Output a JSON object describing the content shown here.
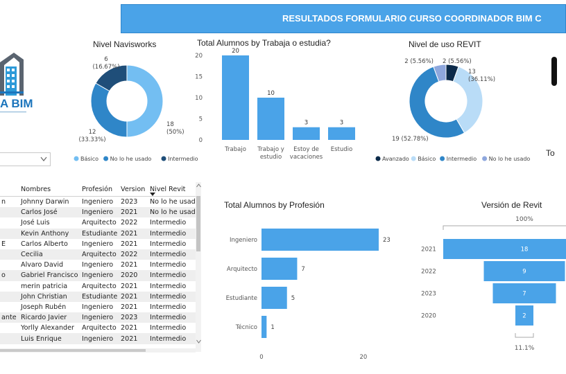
{
  "header": {
    "title": "RESULTADOS FORMULARIO CURSO COORDINADOR BIM C"
  },
  "logo": {
    "text": "A BIM",
    "icon": "building-logo-icon"
  },
  "slicer": {
    "value": "",
    "icon": "chevron-down-icon"
  },
  "table": {
    "columns": [
      "",
      "Nombres",
      "Profesión",
      "Version",
      "Nivel Revit"
    ],
    "sort_icon": "sort-descending-icon",
    "rows": [
      [
        "n",
        "Johnny Darwin",
        "Ingeniero",
        "2023",
        "No lo he usado"
      ],
      [
        "",
        "Carlos José",
        "Ingeniero",
        "2021",
        "No lo he usado"
      ],
      [
        "",
        "José Luis",
        "Arquitecto",
        "2022",
        "Intermedio"
      ],
      [
        "",
        "Kevin Anthony",
        "Estudiante",
        "2021",
        "Intermedio"
      ],
      [
        "E",
        "Carlos Alberto",
        "Ingeniero",
        "2021",
        "Intermedio"
      ],
      [
        "",
        "Cecilia",
        "Arquitecto",
        "2022",
        "Intermedio"
      ],
      [
        "",
        "Alvaro David",
        "Ingeniero",
        "2021",
        "Intermedio"
      ],
      [
        "o",
        "Gabriel Francisco",
        "Ingeniero",
        "2020",
        "Intermedio"
      ],
      [
        "",
        "merin patricia",
        "Arquitecto",
        "2021",
        "Intermedio"
      ],
      [
        "",
        "John Christian",
        "Estudiante",
        "2021",
        "Intermedio"
      ],
      [
        "",
        "Joseph Rubén",
        "Ingeniero",
        "2021",
        "Intermedio"
      ],
      [
        "ante",
        "Ricardo Javier",
        "Ingeniero",
        "2023",
        "Intermedio"
      ],
      [
        "",
        "Yorlly Alexander",
        "Arquitecto",
        "2021",
        "Intermedio"
      ],
      [
        "",
        "Luis Enrique",
        "Ingeniero",
        "2021",
        "Intermedio"
      ]
    ]
  },
  "right_edge": {
    "label": "To"
  },
  "colors": {
    "banner": "#4aa3e8",
    "bar": "#4aa3e8",
    "light": "#73bef2",
    "mid": "#2f86c8",
    "dark": "#1f4e79",
    "navy": "#0b2a4a",
    "pale": "#b9dcf7",
    "lavender": "#8ea7dd"
  },
  "chart_data": [
    {
      "type": "pie",
      "title": "Nivel Navisworks",
      "categories": [
        "Básico",
        "No lo he usado",
        "Intermedio"
      ],
      "values": [
        18,
        12,
        6
      ],
      "data_labels": [
        "18\n(50%)",
        "12\n(33.33%)",
        "6\n(16.67%)"
      ],
      "legend": "bottom"
    },
    {
      "type": "bar",
      "title": "Total Alumnos by Trabaja o estudia?",
      "categories": [
        "Trabajo",
        "Trabajo y\nestudio",
        "Estoy de\nvacaciones",
        "Estudio"
      ],
      "values": [
        20,
        10,
        3,
        3
      ],
      "yticks": [
        "0",
        "5",
        "10",
        "15",
        "20"
      ],
      "ylim": [
        0,
        20
      ]
    },
    {
      "type": "pie",
      "title": "Nivel de uso REVIT",
      "categories": [
        "Avanzado",
        "Básico",
        "Intermedio",
        "No lo he usado"
      ],
      "values": [
        2,
        13,
        19,
        2
      ],
      "data_labels": [
        "2 (5.56%)",
        "13\n(36.11%)",
        "19 (52.78%)",
        "2 (5.56%)"
      ],
      "legend": "bottom"
    },
    {
      "type": "bar",
      "title": "Total Alumnos by Profesión",
      "orientation": "horizontal",
      "categories": [
        "Ingeniero",
        "Arquitecto",
        "Estudiante",
        "Técnico"
      ],
      "values": [
        23,
        7,
        5,
        1
      ],
      "xticks": [
        "0",
        "20"
      ],
      "xlim": [
        0,
        24.5
      ]
    },
    {
      "type": "bar",
      "subtype": "funnel",
      "title": "Versión de Revit",
      "categories": [
        "2021",
        "2022",
        "2023",
        "2020"
      ],
      "values": [
        18,
        9,
        7,
        2
      ],
      "top_label": "100%",
      "bottom_label": "11.1%"
    }
  ]
}
